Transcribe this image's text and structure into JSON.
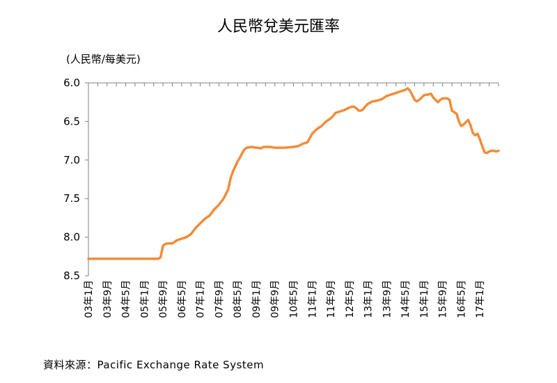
{
  "chart_data": {
    "type": "line",
    "title": "人民幣兌美元匯率",
    "y_unit_label": "(人民幣/每美元)",
    "source": "資料來源：Pacific Exchange Rate System",
    "y_axis": {
      "min": 6.0,
      "max": 8.5,
      "inverted": true,
      "ticks": [
        "6.0",
        "6.5",
        "7.0",
        "7.5",
        "8.0",
        "8.5"
      ]
    },
    "x_tick_labels": [
      "03年1月",
      "03年9月",
      "04年5月",
      "05年1月",
      "05年9月",
      "06年5月",
      "07年1月",
      "07年9月",
      "08年5月",
      "09年1月",
      "09年9月",
      "10年5月",
      "11年1月",
      "11年9月",
      "12年5月",
      "13年1月",
      "13年9月",
      "14年5月",
      "15年1月",
      "15年9月",
      "16年5月",
      "17年1月"
    ],
    "x_range_months": [
      0,
      176
    ],
    "gridlines": false,
    "line_color": "#F28C38",
    "series": [
      {
        "name": "",
        "points": [
          [
            0,
            8.28
          ],
          [
            30,
            8.28
          ],
          [
            31,
            8.26
          ],
          [
            32,
            8.11
          ],
          [
            33,
            8.09
          ],
          [
            34,
            8.08
          ],
          [
            36,
            8.08
          ],
          [
            38,
            8.04
          ],
          [
            40,
            8.02
          ],
          [
            42,
            8.0
          ],
          [
            44,
            7.96
          ],
          [
            46,
            7.88
          ],
          [
            48,
            7.82
          ],
          [
            50,
            7.76
          ],
          [
            52,
            7.72
          ],
          [
            54,
            7.64
          ],
          [
            56,
            7.58
          ],
          [
            58,
            7.5
          ],
          [
            60,
            7.38
          ],
          [
            61,
            7.24
          ],
          [
            62,
            7.15
          ],
          [
            64,
            7.02
          ],
          [
            65,
            6.97
          ],
          [
            66,
            6.91
          ],
          [
            67,
            6.86
          ],
          [
            68,
            6.84
          ],
          [
            70,
            6.83
          ],
          [
            72,
            6.84
          ],
          [
            73,
            6.84
          ],
          [
            74,
            6.85
          ],
          [
            75,
            6.83
          ],
          [
            76,
            6.83
          ],
          [
            78,
            6.83
          ],
          [
            80,
            6.84
          ],
          [
            84,
            6.84
          ],
          [
            88,
            6.83
          ],
          [
            90,
            6.82
          ],
          [
            92,
            6.79
          ],
          [
            94,
            6.77
          ],
          [
            96,
            6.66
          ],
          [
            98,
            6.6
          ],
          [
            100,
            6.56
          ],
          [
            102,
            6.5
          ],
          [
            104,
            6.46
          ],
          [
            105,
            6.43
          ],
          [
            106,
            6.39
          ],
          [
            108,
            6.37
          ],
          [
            110,
            6.35
          ],
          [
            112,
            6.32
          ],
          [
            113,
            6.31
          ],
          [
            114,
            6.31
          ],
          [
            115,
            6.33
          ],
          [
            116,
            6.36
          ],
          [
            117,
            6.36
          ],
          [
            118,
            6.34
          ],
          [
            119,
            6.3
          ],
          [
            120,
            6.27
          ],
          [
            122,
            6.24
          ],
          [
            124,
            6.23
          ],
          [
            126,
            6.21
          ],
          [
            128,
            6.17
          ],
          [
            130,
            6.15
          ],
          [
            132,
            6.13
          ],
          [
            134,
            6.11
          ],
          [
            136,
            6.09
          ],
          [
            137,
            6.07
          ],
          [
            138,
            6.1
          ],
          [
            139,
            6.16
          ],
          [
            140,
            6.22
          ],
          [
            141,
            6.24
          ],
          [
            142,
            6.22
          ],
          [
            143,
            6.19
          ],
          [
            144,
            6.16
          ],
          [
            146,
            6.15
          ],
          [
            147,
            6.14
          ],
          [
            148,
            6.19
          ],
          [
            150,
            6.25
          ],
          [
            151,
            6.22
          ],
          [
            152,
            6.2
          ],
          [
            154,
            6.2
          ],
          [
            155,
            6.22
          ],
          [
            156,
            6.36
          ],
          [
            157,
            6.38
          ],
          [
            158,
            6.4
          ],
          [
            159,
            6.5
          ],
          [
            160,
            6.56
          ],
          [
            161,
            6.54
          ],
          [
            162,
            6.51
          ],
          [
            163,
            6.48
          ],
          [
            164,
            6.55
          ],
          [
            165,
            6.65
          ],
          [
            166,
            6.68
          ],
          [
            167,
            6.66
          ],
          [
            168,
            6.73
          ],
          [
            169,
            6.82
          ],
          [
            170,
            6.9
          ],
          [
            171,
            6.91
          ],
          [
            172,
            6.89
          ],
          [
            173,
            6.88
          ],
          [
            174,
            6.88
          ],
          [
            175,
            6.89
          ],
          [
            176,
            6.88
          ]
        ]
      }
    ]
  }
}
